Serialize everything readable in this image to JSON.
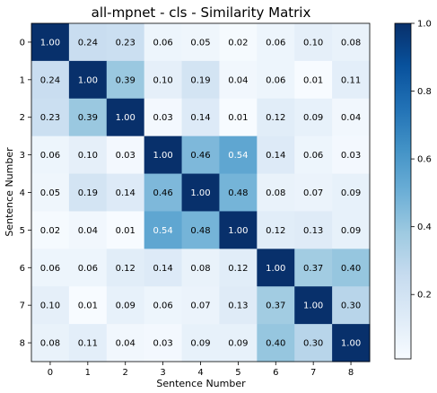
{
  "chart_data": {
    "type": "heatmap",
    "title": "all-mpnet - cls - Similarity Matrix",
    "xlabel": "Sentence Number",
    "ylabel": "Sentence Number",
    "x_ticks": [
      "0",
      "1",
      "2",
      "3",
      "4",
      "5",
      "6",
      "7",
      "8"
    ],
    "y_ticks": [
      "0",
      "1",
      "2",
      "3",
      "4",
      "5",
      "6",
      "7",
      "8"
    ],
    "matrix": [
      [
        1.0,
        0.24,
        0.23,
        0.06,
        0.05,
        0.02,
        0.06,
        0.1,
        0.08
      ],
      [
        0.24,
        1.0,
        0.39,
        0.1,
        0.19,
        0.04,
        0.06,
        0.01,
        0.11
      ],
      [
        0.23,
        0.39,
        1.0,
        0.03,
        0.14,
        0.01,
        0.12,
        0.09,
        0.04
      ],
      [
        0.06,
        0.1,
        0.03,
        1.0,
        0.46,
        0.54,
        0.14,
        0.06,
        0.03
      ],
      [
        0.05,
        0.19,
        0.14,
        0.46,
        1.0,
        0.48,
        0.08,
        0.07,
        0.09
      ],
      [
        0.02,
        0.04,
        0.01,
        0.54,
        0.48,
        1.0,
        0.12,
        0.13,
        0.09
      ],
      [
        0.06,
        0.06,
        0.12,
        0.14,
        0.08,
        0.12,
        1.0,
        0.37,
        0.4
      ],
      [
        0.1,
        0.01,
        0.09,
        0.06,
        0.07,
        0.13,
        0.37,
        1.0,
        0.3
      ],
      [
        0.08,
        0.11,
        0.04,
        0.03,
        0.09,
        0.09,
        0.4,
        0.3,
        1.0
      ]
    ],
    "value_range": [
      0.01,
      1.0
    ],
    "colormap": "Blues",
    "colorbar_ticks": [
      "0.2",
      "0.4",
      "0.6",
      "0.8",
      "1.0"
    ],
    "colorbar_tick_values": [
      0.2,
      0.4,
      0.6,
      0.8,
      1.0
    ],
    "grid": false,
    "colors": {
      "low": "#f7fbff",
      "high": "#08306b"
    }
  }
}
